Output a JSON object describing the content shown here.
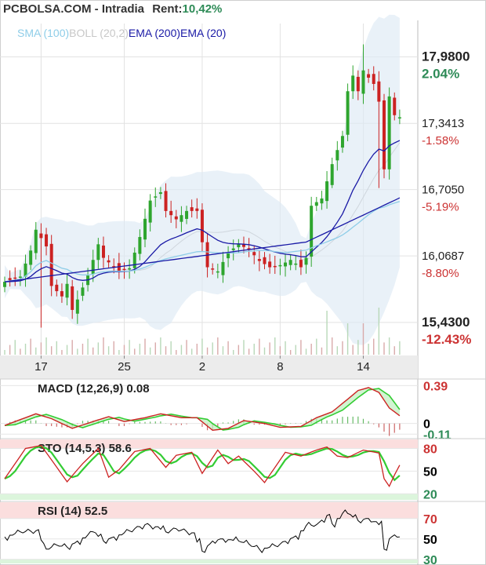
{
  "header": {
    "title": "PCBOLSA.COM - Intradia",
    "rent_label": "Rent:",
    "rent_value": "10,42%"
  },
  "legend": {
    "sma": "SMA (100)",
    "boll": "BOLL (20,2)",
    "ema200": "EMA (200)",
    "ema20": "EMA (20)"
  },
  "colors": {
    "up": "#2ea52e",
    "down": "#cc2222",
    "ema20": "#1a1aa6",
    "ema200": "#1a1aa6",
    "sma100": "#8ecde8",
    "boll": "#dde9f5",
    "macd": "#cc2222",
    "signal": "#33cc33",
    "rsi": "#000000",
    "positive_pct": "#2e8b57",
    "negative_pct": "#cc3333"
  },
  "chart_data": [
    {
      "type": "candlestick",
      "name": "price",
      "ylim": [
        15.12,
        18.3
      ],
      "price_ticks": [
        {
          "value": 17.98,
          "label": "17,9800",
          "pct": "2.04%",
          "pct_sign": "positive"
        },
        {
          "value": 17.3413,
          "label": "17,3413",
          "pct": "-1.58%",
          "pct_sign": "negative"
        },
        {
          "value": 16.705,
          "label": "16,7050",
          "pct": "-5.19%",
          "pct_sign": "negative"
        },
        {
          "value": 16.0687,
          "label": "16,0687",
          "pct": "-8.80%",
          "pct_sign": "negative"
        },
        {
          "value": 15.43,
          "label": "15,4300",
          "pct": "-12.43%",
          "pct_sign": "negative"
        }
      ],
      "x_ticks": [
        {
          "index": 7,
          "label": "17"
        },
        {
          "index": 23,
          "label": "25"
        },
        {
          "index": 38,
          "label": "2"
        },
        {
          "index": 53,
          "label": "8"
        },
        {
          "index": 69,
          "label": "14"
        }
      ],
      "candle_count": 77,
      "close_anchors": [
        [
          0,
          15.82
        ],
        [
          3,
          15.87
        ],
        [
          5,
          16.12
        ],
        [
          6,
          16.32
        ],
        [
          8,
          16.16
        ],
        [
          9,
          15.78
        ],
        [
          11,
          15.68
        ],
        [
          12,
          15.8
        ],
        [
          13,
          15.55
        ],
        [
          14,
          15.65
        ],
        [
          16,
          15.88
        ],
        [
          18,
          16.18
        ],
        [
          19,
          16.05
        ],
        [
          22,
          15.92
        ],
        [
          24,
          15.95
        ],
        [
          26,
          16.25
        ],
        [
          28,
          16.6
        ],
        [
          30,
          16.68
        ],
        [
          31,
          16.5
        ],
        [
          33,
          16.42
        ],
        [
          35,
          16.5
        ],
        [
          37,
          16.5
        ],
        [
          38,
          16.2
        ],
        [
          39,
          15.96
        ],
        [
          41,
          15.92
        ],
        [
          43,
          16.1
        ],
        [
          45,
          16.18
        ],
        [
          47,
          16.13
        ],
        [
          49,
          16.02
        ],
        [
          51,
          15.96
        ],
        [
          53,
          15.98
        ],
        [
          55,
          16.03
        ],
        [
          57,
          15.96
        ],
        [
          58,
          16.05
        ],
        [
          59,
          16.55
        ],
        [
          61,
          16.62
        ],
        [
          63,
          16.95
        ],
        [
          65,
          17.22
        ],
        [
          66,
          17.65
        ],
        [
          67,
          17.8
        ],
        [
          68,
          17.65
        ],
        [
          69,
          17.85
        ],
        [
          70,
          17.78
        ],
        [
          71,
          17.72
        ],
        [
          72,
          17.55
        ],
        [
          73,
          16.9
        ],
        [
          74,
          17.6
        ],
        [
          75,
          17.42
        ],
        [
          76,
          17.4
        ]
      ],
      "spikes": [
        {
          "index": 7,
          "low": 15.38
        },
        {
          "index": 63,
          "low": 16.72
        },
        {
          "index": 69,
          "high": 18.1
        },
        {
          "index": 72,
          "low": 16.72
        }
      ],
      "volume": {
        "max_index": 72,
        "spike_indices": [
          62,
          66,
          69,
          72
        ]
      }
    },
    {
      "type": "line",
      "name": "MACD (12,26,9)",
      "label": "MACD (12,26,9) 0.08",
      "ylim": [
        -0.14,
        0.45
      ],
      "ticks": [
        {
          "value": 0.39,
          "label": "0.39",
          "color": "#cc3333"
        },
        {
          "value": 0,
          "label": "0",
          "color": "#000000"
        },
        {
          "value": -0.11,
          "label": "-0.11",
          "color": "#2e8b57"
        }
      ],
      "macd_anchors": [
        [
          0,
          -0.02
        ],
        [
          6,
          0.1
        ],
        [
          9,
          0.05
        ],
        [
          13,
          -0.05
        ],
        [
          17,
          0.02
        ],
        [
          20,
          0.07
        ],
        [
          23,
          0.02
        ],
        [
          27,
          0.06
        ],
        [
          30,
          0.1
        ],
        [
          34,
          0.06
        ],
        [
          37,
          0.06
        ],
        [
          40,
          -0.07
        ],
        [
          43,
          -0.05
        ],
        [
          46,
          0.03
        ],
        [
          50,
          0.0
        ],
        [
          53,
          -0.04
        ],
        [
          57,
          -0.03
        ],
        [
          60,
          0.06
        ],
        [
          63,
          0.12
        ],
        [
          66,
          0.25
        ],
        [
          68,
          0.34
        ],
        [
          70,
          0.37
        ],
        [
          72,
          0.32
        ],
        [
          74,
          0.16
        ],
        [
          76,
          0.08
        ]
      ]
    },
    {
      "type": "line",
      "name": "STO (14,5,3)",
      "label": "STO (14,5,3) 58.6",
      "ylim": [
        12,
        92
      ],
      "ticks": [
        {
          "value": 80,
          "label": "80",
          "color": "#cc3333"
        },
        {
          "value": 50,
          "label": "50",
          "color": "#000000"
        },
        {
          "value": 20,
          "label": "20",
          "color": "#2e8b57"
        }
      ],
      "bands": {
        "upper": 80,
        "lower": 20
      },
      "k_anchors": [
        [
          0,
          40
        ],
        [
          4,
          80
        ],
        [
          7,
          84
        ],
        [
          9,
          65
        ],
        [
          12,
          36
        ],
        [
          15,
          60
        ],
        [
          18,
          80
        ],
        [
          20,
          42
        ],
        [
          22,
          52
        ],
        [
          25,
          76
        ],
        [
          28,
          80
        ],
        [
          31,
          55
        ],
        [
          33,
          71
        ],
        [
          36,
          75
        ],
        [
          38,
          47
        ],
        [
          41,
          78
        ],
        [
          43,
          60
        ],
        [
          45,
          70
        ],
        [
          48,
          50
        ],
        [
          50,
          35
        ],
        [
          52,
          55
        ],
        [
          54,
          75
        ],
        [
          57,
          70
        ],
        [
          60,
          78
        ],
        [
          62,
          82
        ],
        [
          64,
          70
        ],
        [
          66,
          68
        ],
        [
          69,
          78
        ],
        [
          72,
          74
        ],
        [
          73,
          40
        ],
        [
          74,
          30
        ],
        [
          75,
          45
        ],
        [
          76,
          58
        ]
      ]
    },
    {
      "type": "line",
      "name": "RSI (14)",
      "label": "RSI (14) 52.5",
      "ylim": [
        26,
        86
      ],
      "ticks": [
        {
          "value": 70,
          "label": "70",
          "color": "#cc3333"
        },
        {
          "value": 50,
          "label": "50",
          "color": "#000000"
        },
        {
          "value": 30,
          "label": "30",
          "color": "#2e8b57"
        }
      ],
      "bands": {
        "upper": 70,
        "lower": 30
      },
      "anchors": [
        [
          0,
          52
        ],
        [
          3,
          57
        ],
        [
          6,
          58
        ],
        [
          8,
          40
        ],
        [
          10,
          44
        ],
        [
          12,
          42
        ],
        [
          14,
          48
        ],
        [
          17,
          57
        ],
        [
          19,
          48
        ],
        [
          22,
          54
        ],
        [
          24,
          58
        ],
        [
          27,
          64
        ],
        [
          29,
          62
        ],
        [
          31,
          57
        ],
        [
          33,
          60
        ],
        [
          36,
          56
        ],
        [
          38,
          38
        ],
        [
          40,
          48
        ],
        [
          42,
          50
        ],
        [
          45,
          48
        ],
        [
          47,
          45
        ],
        [
          49,
          40
        ],
        [
          51,
          42
        ],
        [
          53,
          45
        ],
        [
          56,
          53
        ],
        [
          58,
          63
        ],
        [
          60,
          64
        ],
        [
          62,
          73
        ],
        [
          63,
          65
        ],
        [
          65,
          75
        ],
        [
          66,
          75
        ],
        [
          68,
          68
        ],
        [
          70,
          70
        ],
        [
          72,
          64
        ],
        [
          73,
          40
        ],
        [
          74,
          50
        ],
        [
          75,
          54
        ],
        [
          76,
          52
        ]
      ]
    }
  ]
}
